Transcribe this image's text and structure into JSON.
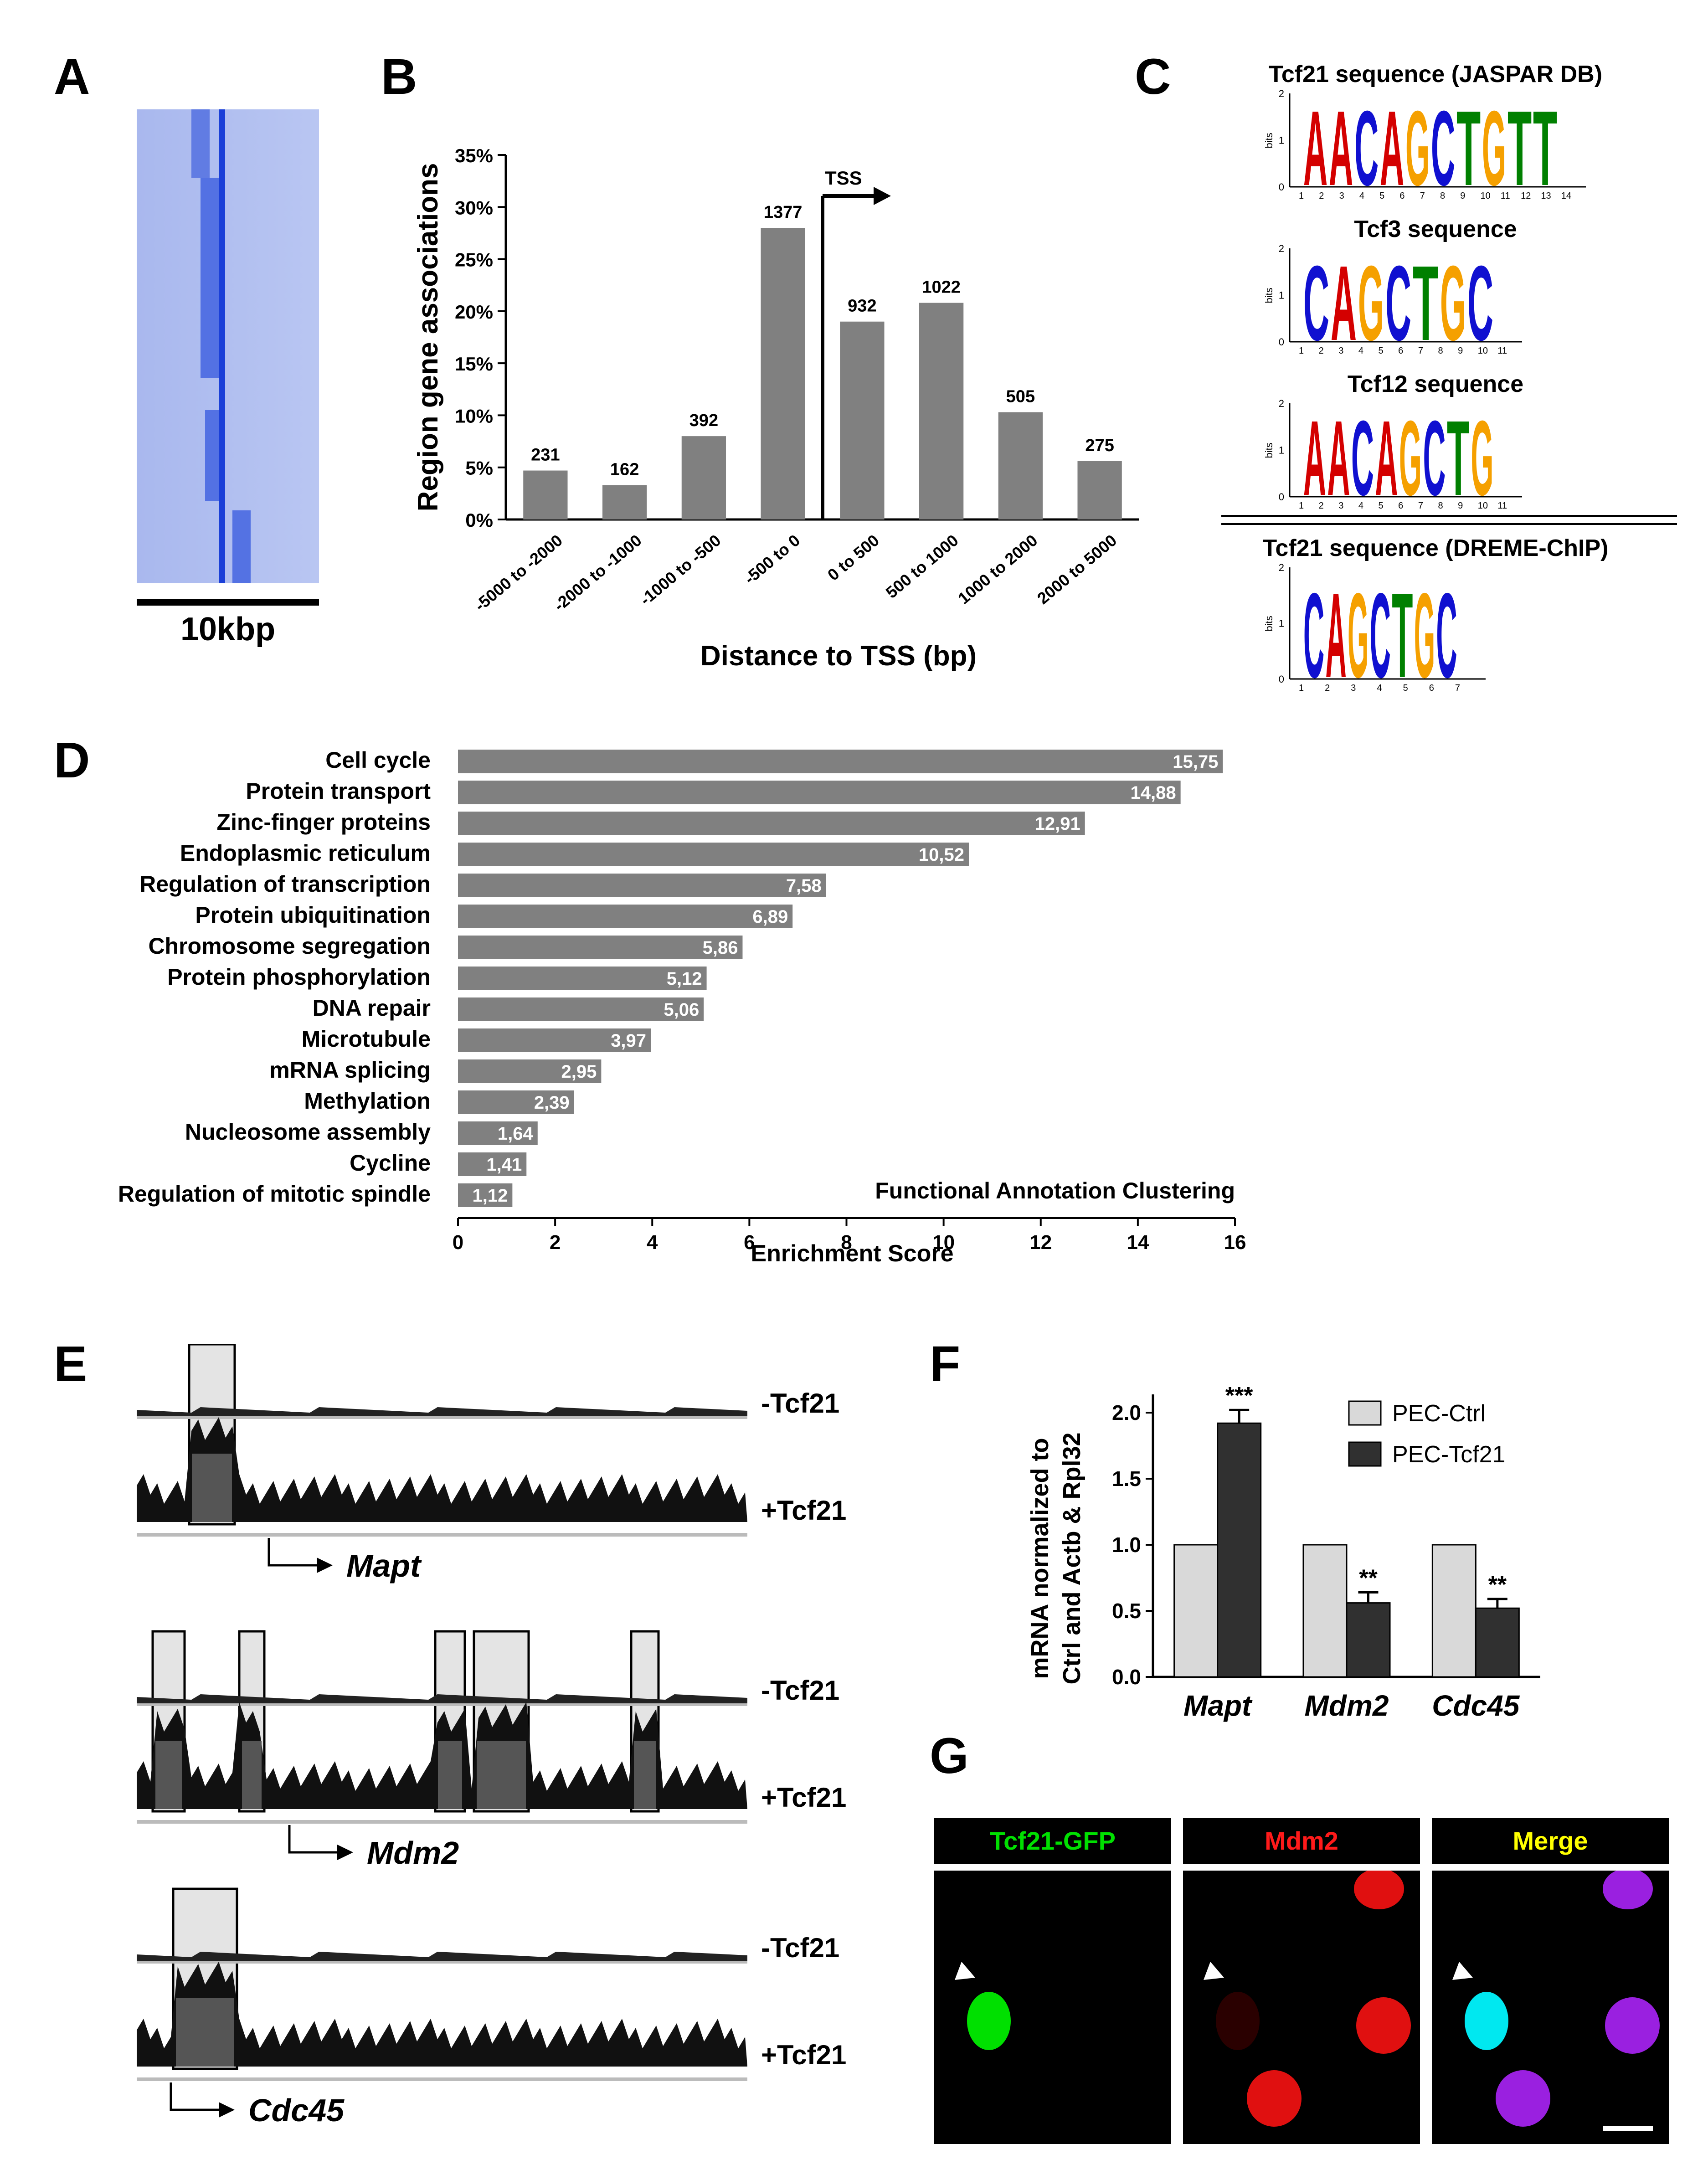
{
  "panels": {
    "A": {
      "label": "A",
      "scale_label": "10kbp"
    },
    "B": {
      "label": "B"
    },
    "C": {
      "label": "C"
    },
    "D": {
      "label": "D"
    },
    "E": {
      "label": "E"
    },
    "F": {
      "label": "F"
    },
    "G": {
      "label": "G"
    }
  },
  "panel_b": {
    "chart_data": {
      "type": "bar",
      "categories": [
        "-5000 to -2000",
        "-2000 to -1000",
        "-1000 to -500",
        "-500 to 0",
        "0 to 500",
        "500 to 1000",
        "1000 to 2000",
        "2000 to 5000"
      ],
      "values": [
        4.7,
        3.3,
        8.0,
        28.0,
        19.0,
        20.8,
        10.3,
        5.6
      ],
      "data_labels": [
        "231",
        "162",
        "392",
        "1377",
        "932",
        "1022",
        "505",
        "275"
      ],
      "ylabel": "Region gene associations",
      "xlabel": "Distance to TSS (bp)",
      "ylim": [
        0,
        35
      ],
      "yticks": [
        "0%",
        "5%",
        "10%",
        "15%",
        "20%",
        "25%",
        "30%",
        "35%"
      ],
      "tss_label": "TSS",
      "bar_color": "#808080"
    }
  },
  "panel_c": {
    "logos": [
      {
        "title": "Tcf21 sequence (JASPAR DB)",
        "letters": "AACAGCTGTT",
        "positions": [
          "1",
          "2",
          "3",
          "4",
          "5",
          "6",
          "7",
          "8",
          "9",
          "10",
          "11",
          "12",
          "13",
          "14"
        ]
      },
      {
        "title": "Tcf3 sequence",
        "letters": "CAGCTGC",
        "positions": [
          "1",
          "2",
          "3",
          "4",
          "5",
          "6",
          "7",
          "8",
          "9",
          "10",
          "11"
        ]
      },
      {
        "title": "Tcf12 sequence",
        "letters": "AACAGCTG",
        "positions": [
          "1",
          "2",
          "3",
          "4",
          "5",
          "6",
          "7",
          "8",
          "9",
          "10",
          "11"
        ]
      },
      {
        "title": "Tcf21 sequence (DREME-ChIP)",
        "letters": "CAGCTGC",
        "positions": [
          "1",
          "2",
          "3",
          "4",
          "5",
          "6",
          "7"
        ]
      }
    ],
    "axis_label": "bits",
    "ticks": [
      "0",
      "1",
      "2"
    ],
    "colors": {
      "A": "#d40000",
      "C": "#1010d0",
      "G": "#f5a000",
      "T": "#008000"
    }
  },
  "panel_d": {
    "chart_data": {
      "type": "bar",
      "orientation": "horizontal",
      "categories": [
        "Cell cycle",
        "Protein transport",
        "Zinc-finger proteins",
        "Endoplasmic reticulum",
        "Regulation of transcription",
        "Protein ubiquitination",
        "Chromosome segregation",
        "Protein phosphorylation",
        "DNA repair",
        "Microtubule",
        "mRNA splicing",
        "Methylation",
        "Nucleosome assembly",
        "Cycline",
        "Regulation of mitotic spindle"
      ],
      "values": [
        15.75,
        14.88,
        12.91,
        10.52,
        7.58,
        6.89,
        5.86,
        5.12,
        5.06,
        3.97,
        2.95,
        2.39,
        1.64,
        1.41,
        1.12
      ],
      "data_labels": [
        "15,75",
        "14,88",
        "12,91",
        "10,52",
        "7,58",
        "6,89",
        "5,86",
        "5,12",
        "5,06",
        "3,97",
        "2,95",
        "2,39",
        "1,64",
        "1,41",
        "1,12"
      ],
      "xlabel": "Enrichment Score",
      "annotation": "Functional Annotation Clustering",
      "xlim": [
        0,
        16
      ],
      "xticks": [
        "0",
        "2",
        "4",
        "6",
        "8",
        "10",
        "12",
        "14",
        "16"
      ],
      "bar_color": "#808080"
    }
  },
  "panel_e": {
    "tracks": [
      {
        "gene": "Mapt",
        "minus_label": "-Tcf21",
        "plus_label": "+Tcf21"
      },
      {
        "gene": "Mdm2",
        "minus_label": "-Tcf21",
        "plus_label": "+Tcf21"
      },
      {
        "gene": "Cdc45",
        "minus_label": "-Tcf21",
        "plus_label": "+Tcf21"
      }
    ]
  },
  "panel_f": {
    "chart_data": {
      "type": "bar",
      "categories": [
        "Mapt",
        "Mdm2",
        "Cdc45"
      ],
      "series": [
        {
          "name": "PEC-Ctrl",
          "values": [
            1.0,
            1.0,
            1.0
          ],
          "errors": [
            0,
            0,
            0
          ],
          "color": "#d9d9d9"
        },
        {
          "name": "PEC-Tcf21",
          "values": [
            1.92,
            0.56,
            0.52
          ],
          "errors": [
            0.1,
            0.08,
            0.07
          ],
          "color": "#303030"
        }
      ],
      "significance": [
        "***",
        "**",
        "**"
      ],
      "ylabel_line1": "mRNA normalized to",
      "ylabel_line2": "Ctrl and Actb & Rpl32",
      "ylim": [
        0,
        2.0
      ],
      "yticks": [
        "0.0",
        "0.5",
        "1.0",
        "1.5",
        "2.0"
      ]
    }
  },
  "panel_g": {
    "channels": [
      {
        "title": "Tcf21-GFP",
        "color": "#00e000"
      },
      {
        "title": "Mdm2",
        "color": "#ff1a1a"
      },
      {
        "title": "Merge",
        "color": "#ffff00"
      }
    ]
  }
}
